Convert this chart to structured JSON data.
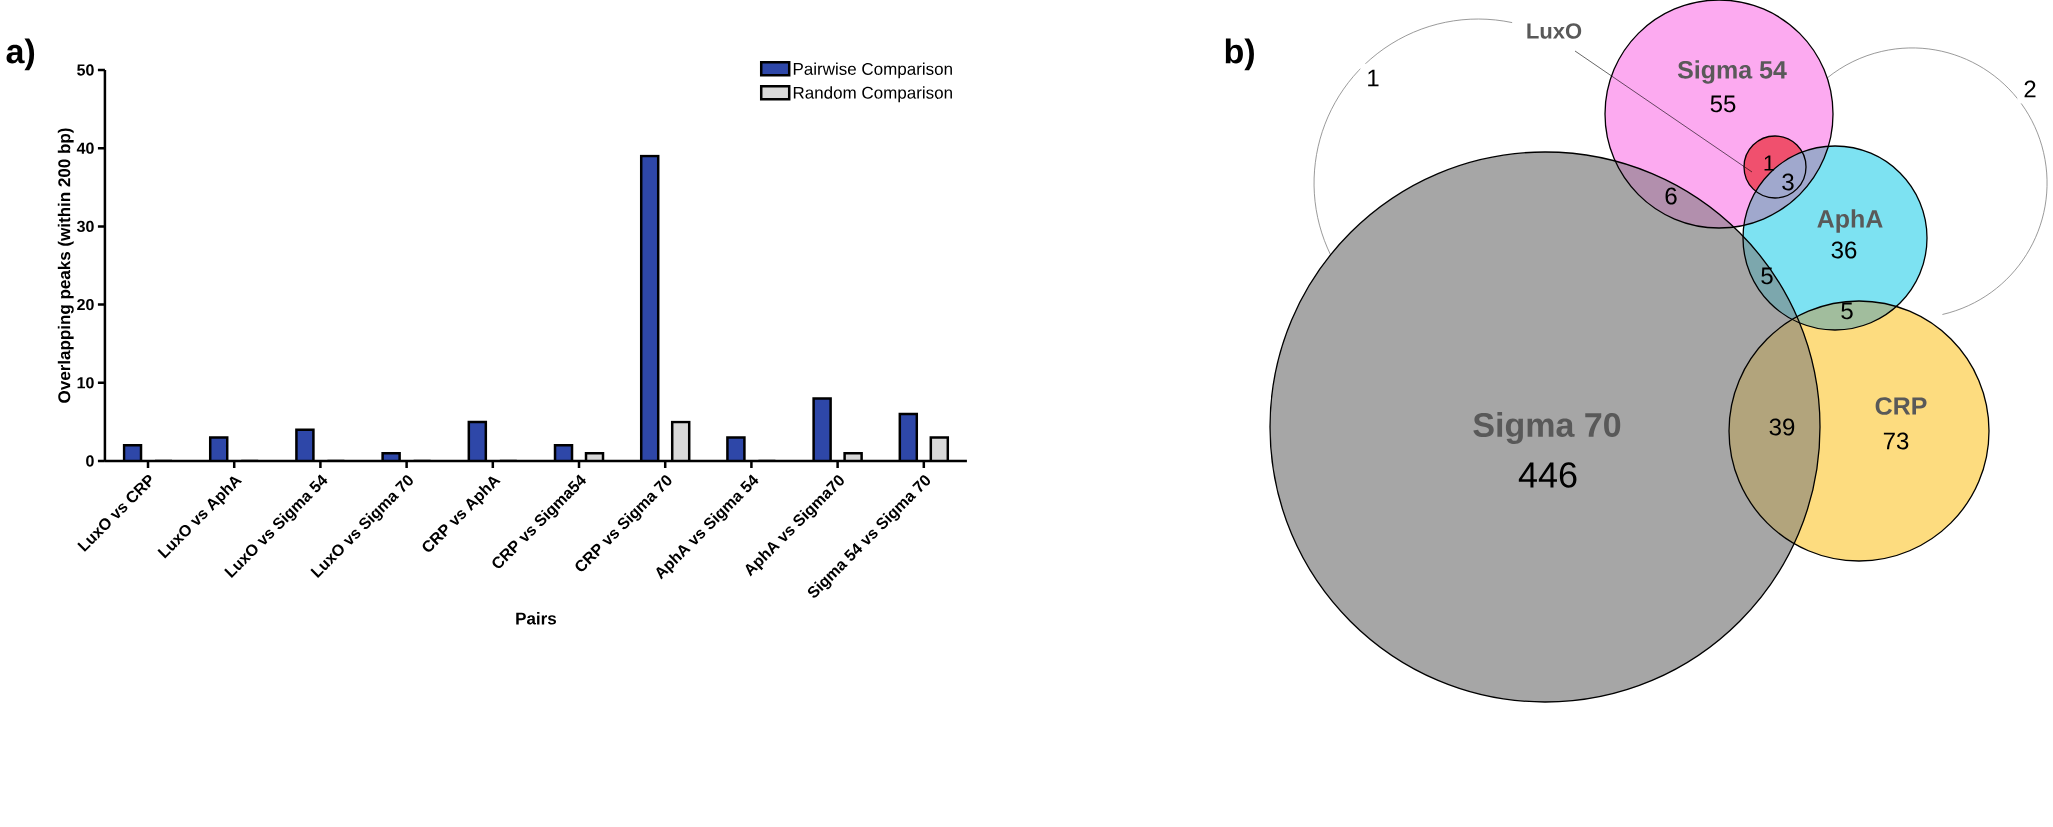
{
  "chart_data": [
    {
      "type": "bar",
      "categories": [
        "LuxO vs CRP",
        "LuxO vs AphA",
        "LuxO vs Sigma 54",
        "LuxO vs Sigma 70",
        "CRP vs AphA",
        "CRP vs Sigma54",
        "CRP vs Sigma 70",
        "AphA vs Sigma 54",
        "AphA vs Sigma70",
        "Sigma 54 vs Sigma 70"
      ],
      "series": [
        {
          "name": "Pairwise Comparison",
          "color": "#2e47a8",
          "values": [
            2,
            3,
            4,
            1,
            5,
            2,
            39,
            3,
            8,
            6
          ]
        },
        {
          "name": "Random Comparison",
          "color": "#d9d9d9",
          "values": [
            0,
            0,
            0,
            0,
            0,
            1,
            5,
            0,
            1,
            3
          ]
        }
      ],
      "xlabel": "Pairs",
      "ylabel": "Overlapping peaks (within 200 bp)",
      "ylim": [
        0,
        50
      ],
      "yticks": [
        0,
        10,
        20,
        30,
        40,
        50
      ],
      "legend": "top right",
      "annotations": [
        "a)"
      ]
    },
    {
      "type": "other",
      "categories": [
        "Sigma 70",
        "Sigma 54",
        "AphA",
        "CRP",
        "LuxO"
      ],
      "colors": [
        "#a6a6a6",
        "#fcaaf0",
        "#7de2f2",
        "#fddc7f",
        "#f0506e"
      ],
      "annotations": [
        "b)",
        "446",
        "55",
        "36",
        "73",
        "1",
        "6",
        "5",
        "5",
        "39",
        "3",
        "1",
        "2"
      ]
    }
  ]
}
